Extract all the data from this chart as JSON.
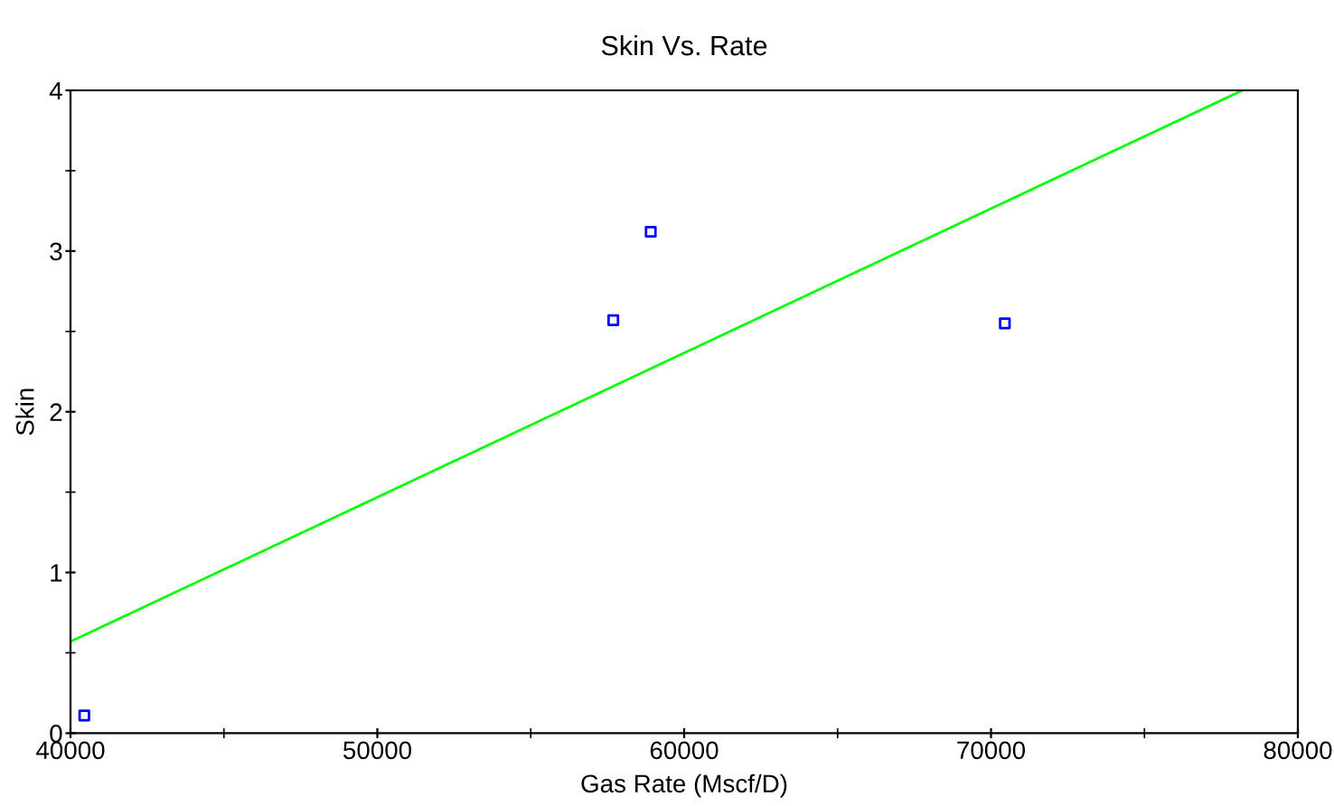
{
  "chart_data": {
    "type": "scatter",
    "title": "Skin Vs. Rate",
    "xlabel": "Gas Rate (Mscf/D)",
    "ylabel": "Skin",
    "series": [
      {
        "color": "#0000ff",
        "marker": "square",
        "x": [
          40450,
          57690,
          58910,
          70450
        ],
        "values": [
          0.11,
          2.57,
          3.12,
          2.55
        ]
      },
      {
        "type": "line",
        "color": "#00ff00",
        "marker": "none",
        "x": [
          40000,
          78190
        ],
        "values": [
          0.57,
          4
        ]
      }
    ],
    "xlim": [
      40000,
      80000
    ],
    "ylim": [
      0,
      4
    ],
    "xticks": [
      40000,
      50000,
      60000,
      70000,
      80000
    ],
    "yticks": [
      0,
      1,
      2,
      3,
      4
    ],
    "grid": false,
    "legend": false
  }
}
